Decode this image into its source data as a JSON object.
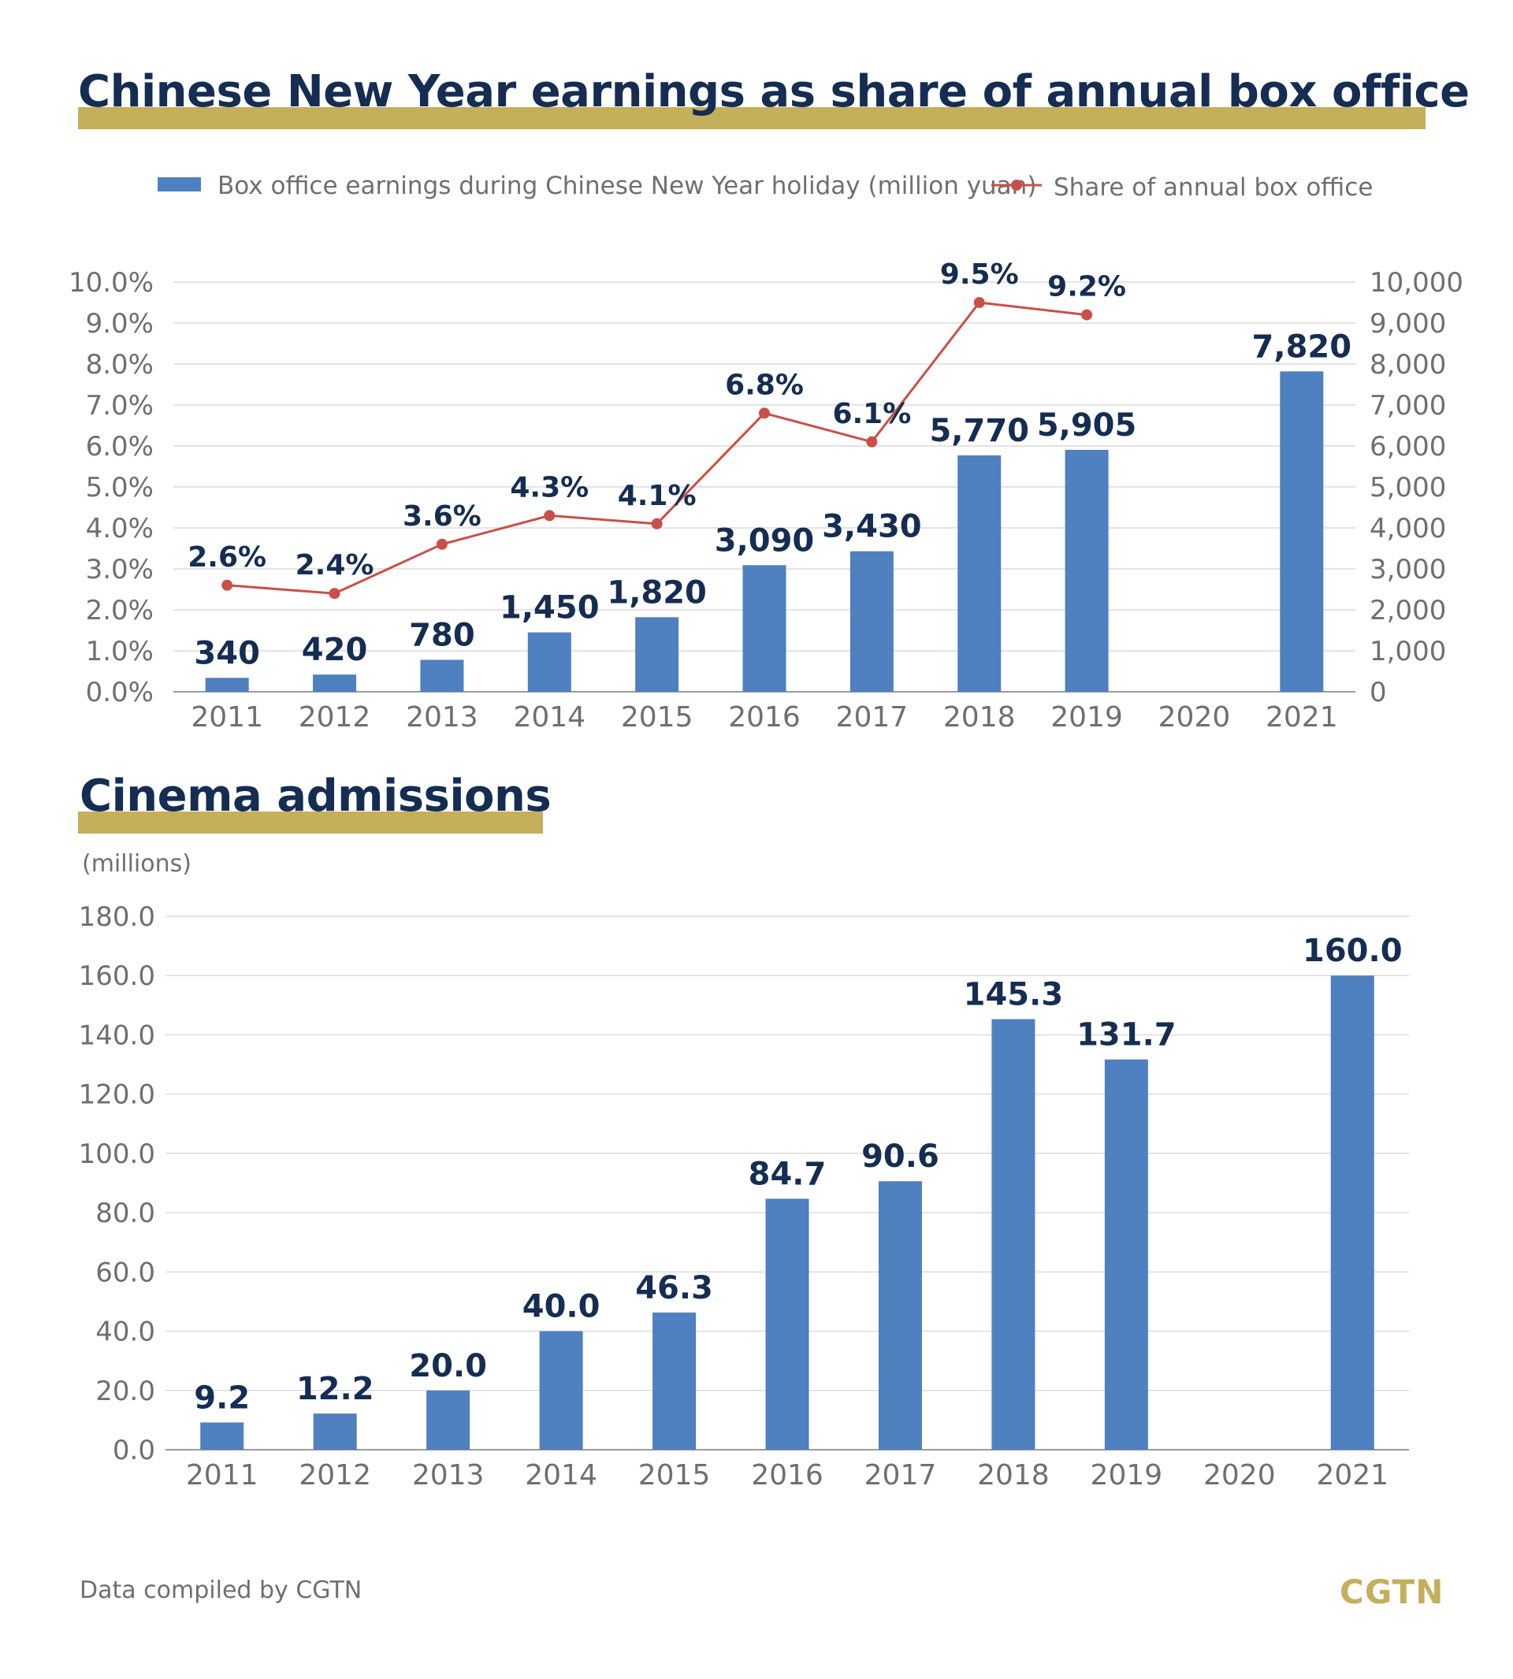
{
  "header": {
    "title": "Chinese New Year earnings as share of annual box office"
  },
  "section2": {
    "title": "Cinema admissions",
    "unit": "(millions)"
  },
  "footer": {
    "source": "Data compiled by CGTN",
    "logo": "CGTN"
  },
  "colors": {
    "bar": "#4f80bf",
    "line": "#c9504a",
    "title": "#152d52",
    "accent": "#c4af5b",
    "grid": "#dcdcdc"
  },
  "chart_data": [
    {
      "type": "bar+line",
      "categories": [
        "2011",
        "2012",
        "2013",
        "2014",
        "2015",
        "2016",
        "2017",
        "2018",
        "2019",
        "2020",
        "2021"
      ],
      "series": [
        {
          "name": "Box office earnings during Chinese New Year holiday (million yuan)",
          "type": "bar",
          "axis": "right",
          "values": [
            340,
            420,
            780,
            1450,
            1820,
            3090,
            3430,
            5770,
            5905,
            null,
            7820
          ],
          "labels": [
            "340",
            "420",
            "780",
            "1,450",
            "1,820",
            "3,090",
            "3,430",
            "5,770",
            "5,905",
            "",
            "7,820"
          ]
        },
        {
          "name": "Share of annual box office",
          "type": "line",
          "axis": "left",
          "values": [
            2.6,
            2.4,
            3.6,
            4.3,
            4.1,
            6.8,
            6.1,
            9.5,
            9.2,
            null,
            null
          ],
          "labels": [
            "2.6%",
            "2.4%",
            "3.6%",
            "4.3%",
            "4.1%",
            "6.8%",
            "6.1%",
            "9.5%",
            "9.2%",
            "",
            ""
          ]
        }
      ],
      "y_left": {
        "range": [
          0,
          10
        ],
        "ticks": [
          "0.0%",
          "1.0%",
          "2.0%",
          "3.0%",
          "4.0%",
          "5.0%",
          "6.0%",
          "7.0%",
          "8.0%",
          "9.0%",
          "10.0%"
        ]
      },
      "y_right": {
        "range": [
          0,
          10000
        ],
        "ticks": [
          "0",
          "1,000",
          "2,000",
          "3,000",
          "4,000",
          "5,000",
          "6,000",
          "7,000",
          "8,000",
          "9,000",
          "10,000"
        ]
      },
      "grid": true,
      "legend_position": "top-center"
    },
    {
      "type": "bar",
      "categories": [
        "2011",
        "2012",
        "2013",
        "2014",
        "2015",
        "2016",
        "2017",
        "2018",
        "2019",
        "2020",
        "2021"
      ],
      "values": [
        9.2,
        12.2,
        20.0,
        40.0,
        46.3,
        84.7,
        90.6,
        145.3,
        131.7,
        null,
        160.0
      ],
      "labels": [
        "9.2",
        "12.2",
        "20.0",
        "40.0",
        "46.3",
        "84.7",
        "90.6",
        "145.3",
        "131.7",
        "",
        "160.0"
      ],
      "ylim": [
        0,
        180
      ],
      "ticks": [
        "0.0",
        "20.0",
        "40.0",
        "60.0",
        "80.0",
        "100.0",
        "120.0",
        "140.0",
        "160.0",
        "180.0"
      ],
      "grid": true
    }
  ]
}
